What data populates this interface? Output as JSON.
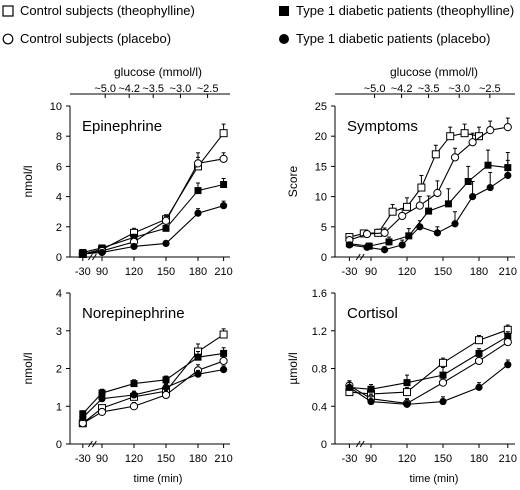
{
  "legend": [
    {
      "label": "Control subjects (theophylline)",
      "marker": "open-square"
    },
    {
      "label": "Type 1 diabetic patients (theophylline)",
      "marker": "filled-square"
    },
    {
      "label": "Control subjects (placebo)",
      "marker": "open-circle"
    },
    {
      "label": "Type 1 diabetic patients (placebo)",
      "marker": "filled-circle"
    }
  ],
  "chart_data": [
    {
      "type": "line",
      "title": "Epinephrine",
      "ylabel": "nmol/l",
      "xlabel": "",
      "top_axis_label": "glucose (mmol/l)",
      "top_ticks": [
        "~5.0",
        "~4.2",
        "~3.5",
        "~3.0",
        "~2.5"
      ],
      "x_ticks": [
        "-30",
        "90",
        "120",
        "150",
        "180",
        "210"
      ],
      "ylim": [
        0,
        10
      ],
      "y_ticks": [
        "0",
        "2",
        "4",
        "6",
        "8",
        "10"
      ],
      "series": [
        {
          "name": "Control subjects (theophylline)",
          "marker": "open-square",
          "values": [
            0.2,
            0.5,
            1.6,
            2.5,
            6.0,
            8.2
          ],
          "err": [
            0.1,
            0.1,
            0.3,
            0.3,
            0.6,
            0.6
          ]
        },
        {
          "name": "Type 1 diabetic patients (theophylline)",
          "marker": "filled-square",
          "values": [
            0.3,
            0.6,
            1.3,
            1.9,
            4.4,
            4.8
          ],
          "err": [
            0.1,
            0.1,
            0.2,
            0.3,
            0.5,
            0.4
          ]
        },
        {
          "name": "Control subjects (placebo)",
          "marker": "open-circle",
          "values": [
            0.2,
            0.4,
            1.0,
            2.4,
            6.2,
            6.5
          ],
          "err": [
            0.1,
            0.1,
            0.2,
            0.3,
            0.7,
            0.4
          ]
        },
        {
          "name": "Type 1 diabetic patients (placebo)",
          "marker": "filled-circle",
          "values": [
            0.2,
            0.3,
            0.7,
            0.9,
            2.9,
            3.4
          ],
          "err": [
            0.1,
            0.1,
            0.1,
            0.1,
            0.3,
            0.3
          ]
        }
      ]
    },
    {
      "type": "line",
      "title": "Symptoms",
      "ylabel": "Score",
      "xlabel": "",
      "top_axis_label": "glucose (mmol/l)",
      "top_ticks": [
        "~5.0",
        "~4.2",
        "~3.5",
        "~3.0",
        "~2.5"
      ],
      "x_ticks": [
        "-30",
        "90",
        "120",
        "150",
        "180",
        "210"
      ],
      "ylim": [
        0,
        25
      ],
      "y_ticks": [
        "0",
        "5",
        "10",
        "15",
        "20",
        "25"
      ],
      "series": [
        {
          "name": "Control subjects (theophylline)",
          "marker": "open-square",
          "x": [
            -30,
            0,
            15,
            30,
            45,
            60,
            75,
            90,
            105,
            120,
            135,
            150
          ],
          "values": [
            3.3,
            3.9,
            4.0,
            7.5,
            8.3,
            11.5,
            17.0,
            20.0,
            20.5,
            20.0,
            null,
            null
          ],
          "err": [
            0.5,
            0.5,
            0.6,
            1.2,
            1.5,
            2.0,
            1.5,
            1.5,
            1.5,
            1.5,
            null,
            null
          ]
        },
        {
          "name": "Type 1 diabetic patients (theophylline)",
          "marker": "filled-square",
          "values": [
            2.2,
            1.8,
            2.5,
            3.5,
            7.6,
            8.8,
            12.5,
            15.2,
            14.8
          ],
          "err": [
            0.5,
            0.5,
            0.8,
            1.2,
            2.5,
            2.5,
            2.5,
            2.5,
            2.5
          ]
        },
        {
          "name": "Control subjects (placebo)",
          "marker": "open-circle",
          "values": [
            2.8,
            3.8,
            4.0,
            6.8,
            8.5,
            10.6,
            16.5,
            19.0,
            21.0,
            21.5
          ],
          "err": [
            0.5,
            0.5,
            0.8,
            1.2,
            1.5,
            2.0,
            1.5,
            1.5,
            1.5,
            1.5
          ]
        },
        {
          "name": "Type 1 diabetic patients (placebo)",
          "marker": "filled-circle",
          "values": [
            2.0,
            1.6,
            1.2,
            2.0,
            5.0,
            4.0,
            5.5,
            10.0,
            11.5,
            13.5
          ],
          "err": [
            0.5,
            0.5,
            0.5,
            0.8,
            1.0,
            1.0,
            2.0,
            2.5,
            2.5,
            2.5
          ]
        }
      ]
    },
    {
      "type": "line",
      "title": "Norepinephrine",
      "ylabel": "nmol/l",
      "xlabel": "time (min)",
      "x_ticks": [
        "-30",
        "90",
        "120",
        "150",
        "180",
        "210"
      ],
      "ylim": [
        0,
        4
      ],
      "y_ticks": [
        "0",
        "1",
        "2",
        "3",
        "4"
      ],
      "series": [
        {
          "name": "Control subjects (theophylline)",
          "marker": "open-square",
          "values": [
            0.55,
            0.95,
            1.25,
            1.4,
            2.45,
            2.9
          ],
          "err": [
            0.08,
            0.08,
            0.1,
            0.1,
            0.2,
            0.15
          ]
        },
        {
          "name": "Type 1 diabetic patients (theophylline)",
          "marker": "filled-square",
          "values": [
            0.8,
            1.35,
            1.6,
            1.7,
            2.3,
            2.4
          ],
          "err": [
            0.08,
            0.1,
            0.1,
            0.1,
            0.15,
            0.15
          ]
        },
        {
          "name": "Control subjects (placebo)",
          "marker": "open-circle",
          "values": [
            0.55,
            0.85,
            1.0,
            1.3,
            1.95,
            2.2
          ],
          "err": [
            0.08,
            0.08,
            0.1,
            0.1,
            0.15,
            0.15
          ]
        },
        {
          "name": "Type 1 diabetic patients (placebo)",
          "marker": "filled-circle",
          "values": [
            0.7,
            1.2,
            1.3,
            1.5,
            1.85,
            1.97
          ],
          "err": [
            0.08,
            0.08,
            0.1,
            0.1,
            0.1,
            0.1
          ]
        }
      ]
    },
    {
      "type": "line",
      "title": "Cortisol",
      "ylabel": "µmol/l",
      "xlabel": "time (min)",
      "x_ticks": [
        "-30",
        "90",
        "120",
        "150",
        "180",
        "210"
      ],
      "ylim": [
        0,
        1.6
      ],
      "y_ticks": [
        "0",
        "0.4",
        "0.8",
        "1.2",
        "1.6"
      ],
      "series": [
        {
          "name": "Control subjects (theophylline)",
          "marker": "open-square",
          "values": [
            0.55,
            0.53,
            0.55,
            0.86,
            1.1,
            1.21
          ],
          "err": [
            0.05,
            0.05,
            0.05,
            0.05,
            0.05,
            0.05
          ]
        },
        {
          "name": "Type 1 diabetic patients (theophylline)",
          "marker": "filled-square",
          "values": [
            0.6,
            0.58,
            0.65,
            0.73,
            0.96,
            1.14
          ],
          "err": [
            0.05,
            0.05,
            0.08,
            0.08,
            0.05,
            0.05
          ]
        },
        {
          "name": "Control subjects (placebo)",
          "marker": "open-circle",
          "values": [
            0.62,
            0.48,
            0.43,
            0.65,
            0.88,
            1.08
          ],
          "err": [
            0.05,
            0.05,
            0.05,
            0.05,
            0.05,
            0.05
          ]
        },
        {
          "name": "Type 1 diabetic patients (placebo)",
          "marker": "filled-circle",
          "values": [
            0.6,
            0.45,
            0.42,
            0.45,
            0.6,
            0.84
          ],
          "err": [
            0.05,
            0.05,
            0.05,
            0.05,
            0.05,
            0.05
          ]
        }
      ]
    }
  ]
}
